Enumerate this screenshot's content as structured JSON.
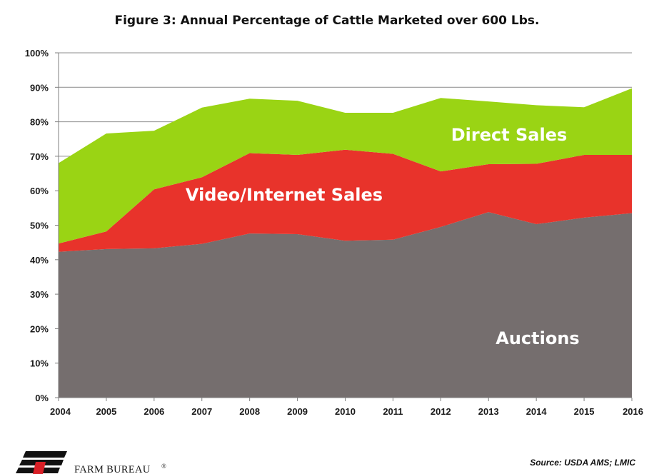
{
  "chart_data": {
    "type": "area",
    "stacked": true,
    "title": "Figure 3: Annual Percentage of Cattle Marketed over 600 Lbs.",
    "xlabel": "",
    "ylabel": "",
    "x": [
      "2004",
      "2005",
      "2006",
      "2007",
      "2008",
      "2009",
      "2010",
      "2011",
      "2012",
      "2013",
      "2014",
      "2015",
      "2016"
    ],
    "ylim": [
      0,
      100
    ],
    "yticks": [
      0,
      10,
      20,
      30,
      40,
      50,
      60,
      70,
      80,
      90,
      100
    ],
    "ytick_labels": [
      "0%",
      "10%",
      "20%",
      "30%",
      "40%",
      "50%",
      "60%",
      "70%",
      "80%",
      "90%",
      "100%"
    ],
    "grid": true,
    "series": [
      {
        "name": "Auctions",
        "color": "#756e6e",
        "values": [
          42.3,
          43.1,
          43.3,
          44.6,
          47.6,
          47.4,
          45.5,
          45.8,
          49.5,
          53.8,
          50.3,
          52.2,
          53.5
        ]
      },
      {
        "name": "Video/Internet Sales",
        "color": "#e8332b",
        "values": [
          2.4,
          5.1,
          17.1,
          19.3,
          23.3,
          23.0,
          26.4,
          24.9,
          16.1,
          13.9,
          17.5,
          18.2,
          16.9
        ]
      },
      {
        "name": "Direct Sales",
        "color": "#9ad414",
        "values": [
          23.3,
          28.4,
          17.0,
          20.2,
          15.8,
          15.7,
          10.7,
          11.9,
          21.3,
          18.2,
          17.0,
          13.8,
          19.3
        ]
      }
    ]
  },
  "source": "Source: USDA  AMS; LMIC",
  "brand": {
    "name": "FARM BUREAU",
    "mark": "®"
  }
}
